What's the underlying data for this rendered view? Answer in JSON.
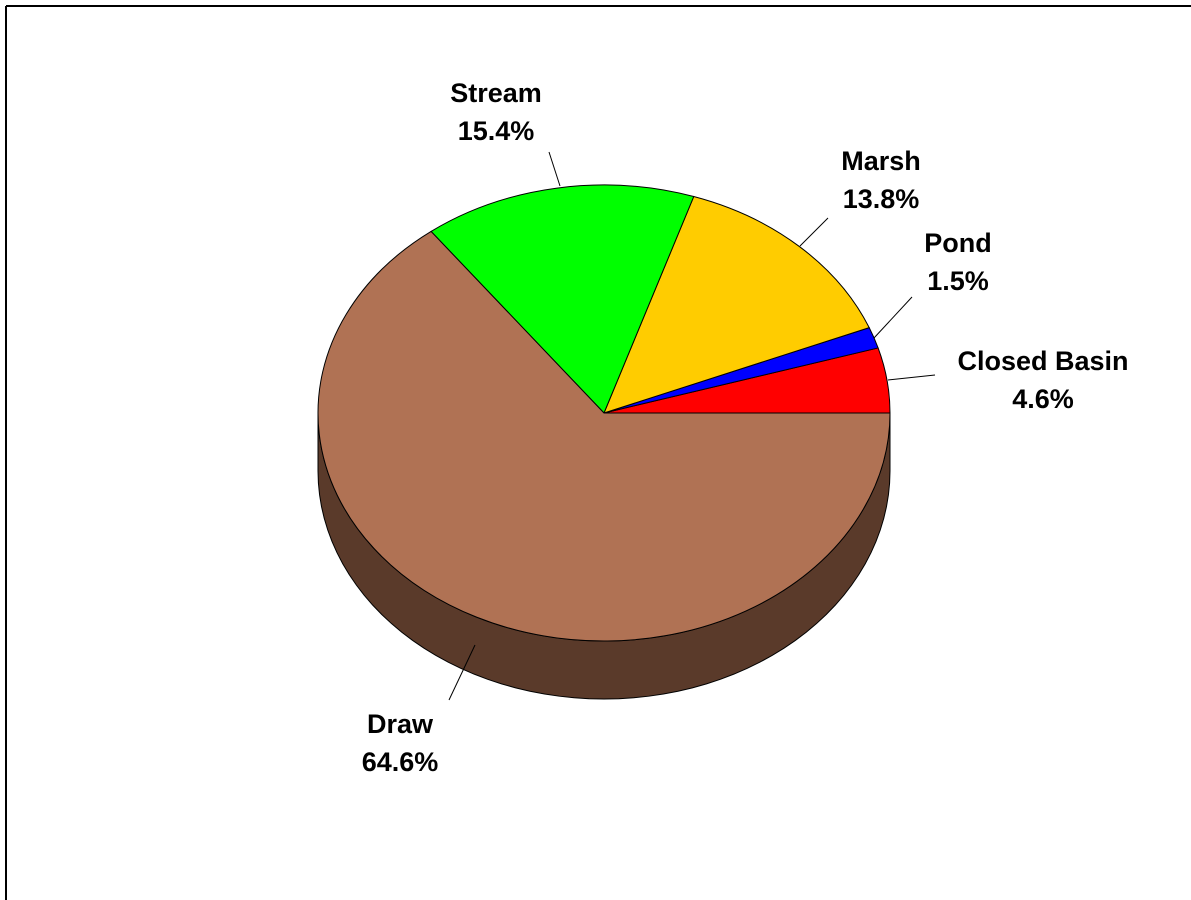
{
  "chart_data": {
    "type": "pie",
    "style": "3d",
    "title": "",
    "legend": "none",
    "slices": [
      {
        "name": "Closed Basin",
        "value": 4.6,
        "label": "4.6%",
        "color": "#ff0000"
      },
      {
        "name": "Pond",
        "value": 1.5,
        "label": "1.5%",
        "color": "#0000ff"
      },
      {
        "name": "Marsh",
        "value": 13.8,
        "label": "13.8%",
        "color": "#ffcc00"
      },
      {
        "name": "Stream",
        "value": 15.4,
        "label": "15.4%",
        "color": "#00ff00"
      },
      {
        "name": "Draw",
        "value": 64.6,
        "label": "64.6%",
        "color": "#b07254"
      }
    ],
    "side_color": "#5a3a2a",
    "border_color": "#000000"
  }
}
